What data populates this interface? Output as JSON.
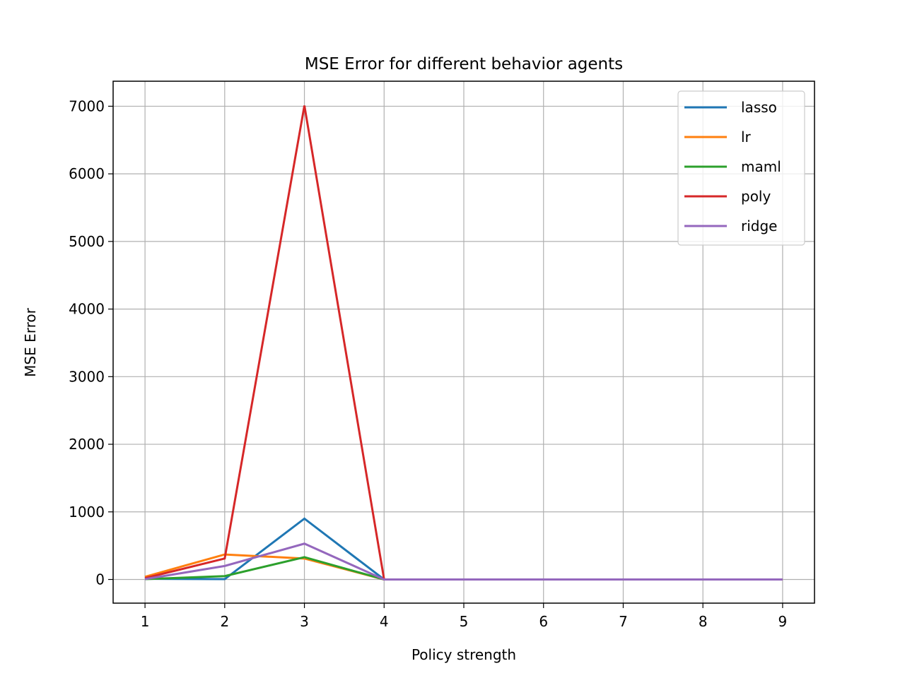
{
  "chart_data": {
    "type": "line",
    "title": "MSE Error for different behavior agents",
    "xlabel": "Policy strength",
    "ylabel": "MSE Error",
    "x": [
      1,
      2,
      3,
      4,
      5,
      6,
      7,
      8,
      9
    ],
    "xticks": [
      1,
      2,
      3,
      4,
      5,
      6,
      7,
      8,
      9
    ],
    "yticks": [
      0,
      1000,
      2000,
      3000,
      4000,
      5000,
      6000,
      7000
    ],
    "xlim": [
      0.6,
      9.4
    ],
    "ylim": [
      -350,
      7370
    ],
    "grid": true,
    "legend_position": "top-right",
    "series": [
      {
        "name": "lasso",
        "color": "#1f77b4",
        "values": [
          10,
          5,
          900,
          0,
          0,
          0,
          0,
          0,
          0
        ]
      },
      {
        "name": "lr",
        "color": "#ff7f0e",
        "values": [
          40,
          370,
          310,
          0,
          0,
          0,
          0,
          0,
          0
        ]
      },
      {
        "name": "maml",
        "color": "#2ca02c",
        "values": [
          5,
          50,
          330,
          0,
          0,
          0,
          0,
          0,
          0
        ]
      },
      {
        "name": "poly",
        "color": "#d62728",
        "values": [
          20,
          310,
          7010,
          0,
          0,
          0,
          0,
          0,
          0
        ]
      },
      {
        "name": "ridge",
        "color": "#9467bd",
        "values": [
          5,
          200,
          530,
          0,
          0,
          0,
          0,
          0,
          0
        ]
      }
    ]
  }
}
